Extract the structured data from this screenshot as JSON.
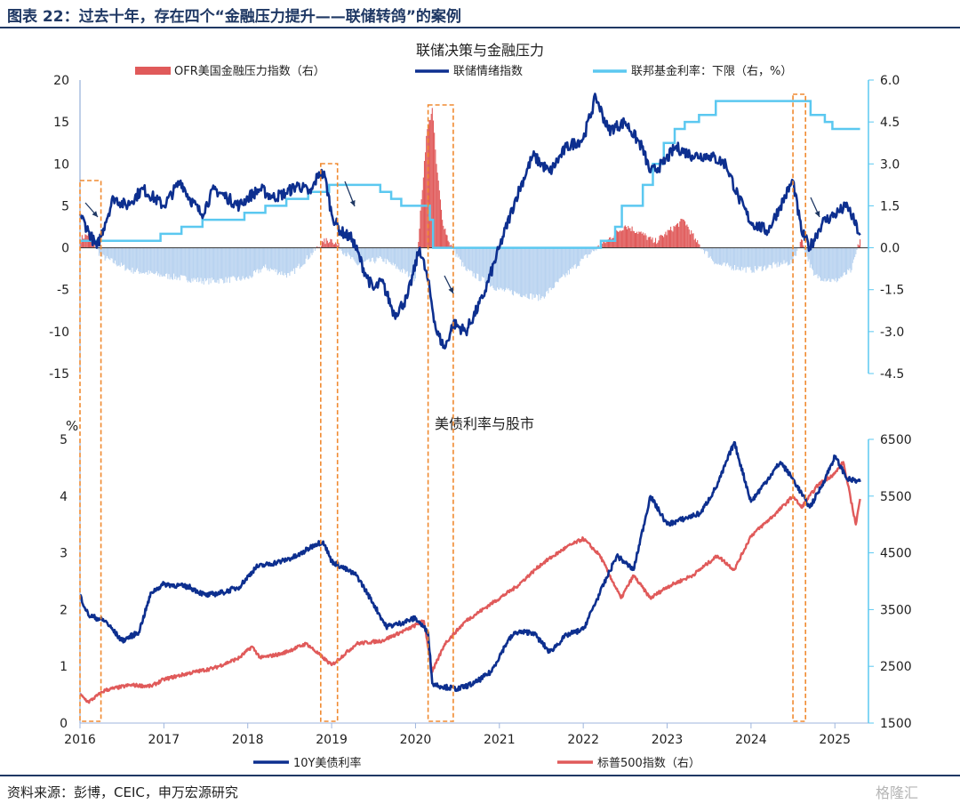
{
  "figure_title": "图表 22：过去十年，存在四个“金融压力提升——联储转鸽”的案例",
  "source": "资料来源：彭博，CEIC，申万宏源研究",
  "watermark": "格隆汇",
  "colors": {
    "navy": "#0d2f8f",
    "light_blue": "#5bc8f0",
    "red": "#e05a5a",
    "pale_blue": "#b9d3f0",
    "orange": "#f08a30",
    "frame": "#1f3864"
  },
  "chart_data": [
    {
      "type": "line",
      "title": "联储决策与金融压力",
      "x_ticks": [
        "2016",
        "2017",
        "2018",
        "2019",
        "2020",
        "2021",
        "2022",
        "2023",
        "2024",
        "2025"
      ],
      "ylim": [
        -15,
        20
      ],
      "y_ticks": [
        "20",
        "15",
        "10",
        "5",
        "0",
        "-5",
        "-10",
        "-15"
      ],
      "y2lim": [
        -4.5,
        6.0
      ],
      "y2_ticks": [
        "6.0",
        "4.5",
        "3.0",
        "1.5",
        "0.0",
        "-1.5",
        "-3.0",
        "-4.5"
      ],
      "legend": [
        "OFR美国金融压力指数（右）",
        "联储情绪指数",
        "联邦基金利率：下限（右，%）"
      ],
      "series": [
        {
          "name": "联储情绪指数",
          "axis": "left",
          "style": "line",
          "color": "#0d2f8f",
          "x": [
            2016.0,
            2016.1,
            2016.2,
            2016.3,
            2016.4,
            2016.55,
            2016.75,
            2017.0,
            2017.2,
            2017.3,
            2017.45,
            2017.6,
            2017.75,
            2017.9,
            2018.0,
            2018.15,
            2018.3,
            2018.45,
            2018.6,
            2018.75,
            2018.85,
            2018.92,
            2019.0,
            2019.1,
            2019.25,
            2019.4,
            2019.5,
            2019.6,
            2019.75,
            2019.9,
            2020.05,
            2020.15,
            2020.25,
            2020.35,
            2020.45,
            2020.6,
            2020.8,
            2021.0,
            2021.2,
            2021.4,
            2021.6,
            2021.8,
            2022.0,
            2022.15,
            2022.3,
            2022.5,
            2022.7,
            2022.8,
            2022.95,
            2023.1,
            2023.3,
            2023.5,
            2023.7,
            2023.85,
            2024.0,
            2024.2,
            2024.35,
            2024.5,
            2024.6,
            2024.7,
            2024.85,
            2025.0,
            2025.15,
            2025.3
          ],
          "y": [
            4,
            2,
            0,
            3,
            6,
            5,
            7,
            5,
            8,
            6,
            4,
            7,
            6,
            5,
            6,
            7,
            6,
            6.5,
            7.5,
            6.5,
            9,
            8.5,
            4,
            2,
            1,
            -3,
            -5,
            -4,
            -8,
            -6,
            0,
            -4,
            -10,
            -12,
            -9,
            -10,
            -6,
            0,
            6,
            11,
            9,
            12,
            13,
            18,
            14,
            15,
            12,
            9,
            10,
            12,
            11,
            11,
            10,
            6,
            3,
            2,
            5,
            8,
            2,
            0,
            3,
            4,
            5,
            1.5
          ]
        },
        {
          "name": "联邦基金利率：下限（右，%）",
          "axis": "right",
          "style": "step",
          "color": "#5bc8f0",
          "x": [
            2016.0,
            2016.96,
            2017.21,
            2017.46,
            2017.96,
            2018.21,
            2018.46,
            2018.72,
            2018.97,
            2019.58,
            2019.71,
            2019.83,
            2020.17,
            2020.21,
            2022.21,
            2022.38,
            2022.46,
            2022.71,
            2022.83,
            2022.96,
            2023.09,
            2023.21,
            2023.38,
            2023.58,
            2024.71,
            2024.88,
            2024.97,
            2025.3
          ],
          "y": [
            0.25,
            0.5,
            0.75,
            1.0,
            1.25,
            1.5,
            1.75,
            2.0,
            2.25,
            2.0,
            1.75,
            1.5,
            1.0,
            0.0,
            0.25,
            0.75,
            1.5,
            2.25,
            3.0,
            3.75,
            4.25,
            4.5,
            4.75,
            5.25,
            4.75,
            4.5,
            4.25,
            4.25
          ]
        },
        {
          "name": "OFR美国金融压力指数（右）",
          "axis": "right",
          "style": "bars",
          "color": "#e05a5a",
          "negative_color": "#b9d3f0",
          "x": [
            2016.0,
            2016.1,
            2016.25,
            2016.6,
            2017.0,
            2017.5,
            2018.0,
            2018.2,
            2018.5,
            2018.9,
            2019.0,
            2019.3,
            2019.6,
            2020.0,
            2020.13,
            2020.2,
            2020.25,
            2020.32,
            2020.4,
            2020.6,
            2021.0,
            2021.5,
            2022.0,
            2022.3,
            2022.5,
            2022.7,
            2022.85,
            2023.2,
            2023.35,
            2023.6,
            2024.0,
            2024.5,
            2024.6,
            2024.75,
            2025.0,
            2025.2,
            2025.3
          ],
          "y": [
            0.3,
            0.5,
            -0.3,
            -0.8,
            -1.0,
            -1.2,
            -1.1,
            -0.7,
            -1.0,
            0.2,
            0.3,
            -0.6,
            -0.4,
            -1.1,
            4.0,
            5.0,
            3.0,
            1.0,
            0.2,
            -0.8,
            -1.5,
            -1.8,
            -0.4,
            0.3,
            0.8,
            0.5,
            0.2,
            1.0,
            0.2,
            -0.6,
            -0.8,
            -0.5,
            0.3,
            -1.0,
            -1.2,
            -0.8,
            0.3
          ]
        }
      ]
    },
    {
      "type": "line",
      "title": "美债利率与股市",
      "y_unit": "%",
      "x_ticks": [
        "2016",
        "2017",
        "2018",
        "2019",
        "2020",
        "2021",
        "2022",
        "2023",
        "2024",
        "2025"
      ],
      "ylim": [
        0,
        5
      ],
      "y_ticks": [
        "5",
        "4",
        "3",
        "2",
        "1",
        "0"
      ],
      "y2lim": [
        1500,
        6500
      ],
      "y2_ticks": [
        "6500",
        "5500",
        "4500",
        "3500",
        "2500",
        "1500"
      ],
      "legend": [
        "10Y美债利率",
        "标普500指数（右）"
      ],
      "series": [
        {
          "name": "10Y美债利率",
          "axis": "left",
          "color": "#0d2f8f",
          "x": [
            2016.0,
            2016.1,
            2016.3,
            2016.5,
            2016.7,
            2016.85,
            2017.0,
            2017.3,
            2017.5,
            2017.7,
            2017.9,
            2018.1,
            2018.4,
            2018.6,
            2018.8,
            2018.9,
            2019.0,
            2019.3,
            2019.5,
            2019.65,
            2019.8,
            2020.0,
            2020.15,
            2020.2,
            2020.3,
            2020.5,
            2020.7,
            2020.9,
            2021.1,
            2021.2,
            2021.4,
            2021.6,
            2021.8,
            2022.0,
            2022.2,
            2022.4,
            2022.6,
            2022.8,
            2023.0,
            2023.2,
            2023.4,
            2023.6,
            2023.8,
            2024.0,
            2024.2,
            2024.35,
            2024.5,
            2024.7,
            2024.85,
            2025.0,
            2025.15,
            2025.3
          ],
          "y": [
            2.25,
            1.9,
            1.8,
            1.45,
            1.6,
            2.3,
            2.45,
            2.4,
            2.25,
            2.3,
            2.4,
            2.75,
            2.85,
            2.95,
            3.15,
            3.2,
            2.85,
            2.6,
            2.1,
            1.7,
            1.75,
            1.85,
            1.6,
            0.7,
            0.65,
            0.6,
            0.7,
            0.9,
            1.45,
            1.6,
            1.6,
            1.25,
            1.55,
            1.65,
            2.3,
            2.95,
            2.7,
            4.0,
            3.5,
            3.6,
            3.7,
            4.2,
            4.95,
            3.9,
            4.3,
            4.6,
            4.3,
            3.8,
            4.2,
            4.7,
            4.3,
            4.25
          ]
        },
        {
          "name": "标普500指数（右）",
          "axis": "right",
          "color": "#e05a5a",
          "x": [
            2016.0,
            2016.1,
            2016.3,
            2016.6,
            2016.85,
            2017.0,
            2017.3,
            2017.6,
            2017.9,
            2018.05,
            2018.15,
            2018.4,
            2018.7,
            2018.9,
            2019.0,
            2019.3,
            2019.6,
            2019.9,
            2020.1,
            2020.2,
            2020.35,
            2020.6,
            2020.9,
            2021.2,
            2021.5,
            2021.8,
            2022.0,
            2022.2,
            2022.45,
            2022.6,
            2022.8,
            2023.0,
            2023.3,
            2023.6,
            2023.8,
            2024.0,
            2024.3,
            2024.5,
            2024.6,
            2024.8,
            2025.0,
            2025.1,
            2025.25,
            2025.3
          ],
          "y": [
            2000,
            1870,
            2080,
            2170,
            2150,
            2270,
            2380,
            2470,
            2650,
            2850,
            2650,
            2720,
            2900,
            2650,
            2520,
            2900,
            2950,
            3150,
            3300,
            2400,
            2900,
            3300,
            3600,
            3900,
            4300,
            4600,
            4750,
            4450,
            3700,
            4100,
            3700,
            3900,
            4100,
            4450,
            4200,
            4800,
            5200,
            5500,
            5300,
            5700,
            5900,
            6100,
            5000,
            5450
          ]
        }
      ]
    }
  ],
  "highlight_periods": [
    [
      2016.0,
      2016.25
    ],
    [
      2018.87,
      2019.07
    ],
    [
      2020.15,
      2020.45
    ],
    [
      2024.5,
      2024.65
    ]
  ],
  "arrows": [
    [
      2016.05,
      2016.18
    ],
    [
      2019.15,
      2019.25
    ],
    [
      2020.35,
      2020.45
    ],
    [
      2024.55,
      2024.65
    ]
  ]
}
